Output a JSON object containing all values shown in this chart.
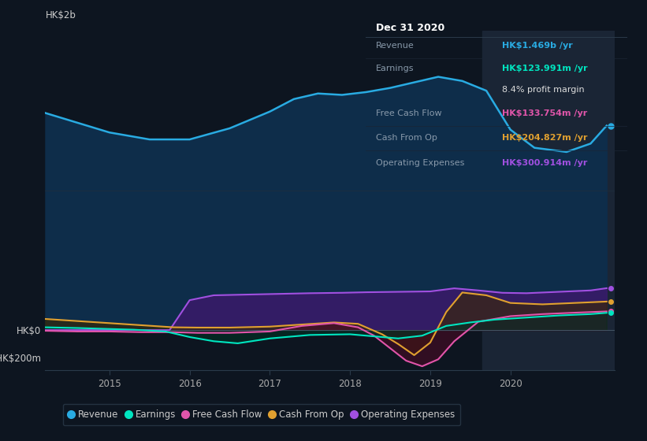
{
  "bg_color": "#0d1520",
  "plot_bg_color": "#0d1520",
  "title_box_text": "Dec 31 2020",
  "tooltip_rows": [
    {
      "label": "Revenue",
      "value": "HK$1.469b /yr",
      "label_color": "#8899aa",
      "value_color": "#29abe2"
    },
    {
      "label": "Earnings",
      "value": "HK$123.991m /yr",
      "label_color": "#8899aa",
      "value_color": "#00e5c0"
    },
    {
      "label": "",
      "value": "8.4% profit margin",
      "label_color": "#aaaaaa",
      "value_color": "#dddddd"
    },
    {
      "label": "Free Cash Flow",
      "value": "HK$133.754m /yr",
      "label_color": "#8899aa",
      "value_color": "#e055aa"
    },
    {
      "label": "Cash From Op",
      "value": "HK$204.827m /yr",
      "label_color": "#8899aa",
      "value_color": "#e0a030"
    },
    {
      "label": "Operating Expenses",
      "value": "HK$300.914m /yr",
      "label_color": "#8899aa",
      "value_color": "#a050e0"
    }
  ],
  "ylim": [
    -290,
    2150
  ],
  "xlim": [
    2014.2,
    2021.3
  ],
  "legend_items": [
    {
      "label": "Revenue",
      "color": "#29abe2"
    },
    {
      "label": "Earnings",
      "color": "#00e5c0"
    },
    {
      "label": "Free Cash Flow",
      "color": "#e055aa"
    },
    {
      "label": "Cash From Op",
      "color": "#e0a030"
    },
    {
      "label": "Operating Expenses",
      "color": "#a050e0"
    }
  ],
  "revenue_x": [
    2014.2,
    2014.6,
    2015.0,
    2015.5,
    2016.0,
    2016.5,
    2017.0,
    2017.3,
    2017.6,
    2017.9,
    2018.2,
    2018.5,
    2018.8,
    2019.1,
    2019.4,
    2019.7,
    2020.0,
    2020.3,
    2020.7,
    2021.0,
    2021.2
  ],
  "revenue_y": [
    1560,
    1490,
    1420,
    1370,
    1370,
    1450,
    1570,
    1660,
    1700,
    1690,
    1710,
    1740,
    1780,
    1820,
    1790,
    1720,
    1440,
    1310,
    1280,
    1340,
    1469
  ],
  "earnings_x": [
    2014.2,
    2014.6,
    2015.0,
    2015.3,
    2015.7,
    2016.0,
    2016.3,
    2016.6,
    2017.0,
    2017.5,
    2018.0,
    2018.3,
    2018.6,
    2018.9,
    2019.2,
    2019.5,
    2019.8,
    2020.2,
    2020.6,
    2021.0,
    2021.2
  ],
  "earnings_y": [
    20,
    15,
    8,
    3,
    -10,
    -50,
    -80,
    -95,
    -60,
    -35,
    -30,
    -45,
    -60,
    -40,
    30,
    55,
    75,
    90,
    105,
    115,
    124
  ],
  "fcf_x": [
    2014.2,
    2014.6,
    2015.0,
    2015.4,
    2015.8,
    2016.1,
    2016.5,
    2017.0,
    2017.4,
    2017.8,
    2018.1,
    2018.3,
    2018.5,
    2018.7,
    2018.9,
    2019.1,
    2019.3,
    2019.6,
    2020.0,
    2020.4,
    2020.8,
    2021.2
  ],
  "fcf_y": [
    -5,
    -10,
    -10,
    -15,
    -15,
    -20,
    -20,
    -10,
    30,
    50,
    20,
    -40,
    -130,
    -220,
    -260,
    -210,
    -80,
    60,
    100,
    115,
    125,
    134
  ],
  "cfop_x": [
    2014.2,
    2014.6,
    2015.0,
    2015.4,
    2015.8,
    2016.1,
    2016.5,
    2017.0,
    2017.4,
    2017.8,
    2018.1,
    2018.4,
    2018.6,
    2018.8,
    2019.0,
    2019.2,
    2019.4,
    2019.7,
    2020.0,
    2020.4,
    2020.8,
    2021.2
  ],
  "cfop_y": [
    80,
    65,
    50,
    35,
    20,
    18,
    18,
    25,
    40,
    55,
    45,
    -30,
    -100,
    -180,
    -90,
    130,
    270,
    250,
    195,
    185,
    195,
    205
  ],
  "opex_x": [
    2014.2,
    2014.6,
    2015.0,
    2015.4,
    2015.75,
    2016.0,
    2016.3,
    2016.7,
    2017.1,
    2017.5,
    2017.9,
    2018.2,
    2018.6,
    2019.0,
    2019.3,
    2019.6,
    2019.9,
    2020.2,
    2020.6,
    2021.0,
    2021.2
  ],
  "opex_y": [
    0,
    0,
    0,
    0,
    0,
    215,
    250,
    255,
    260,
    265,
    268,
    272,
    275,
    278,
    300,
    285,
    268,
    265,
    275,
    285,
    301
  ],
  "highlight_x": 2019.65,
  "highlight_color": "#1a2535"
}
